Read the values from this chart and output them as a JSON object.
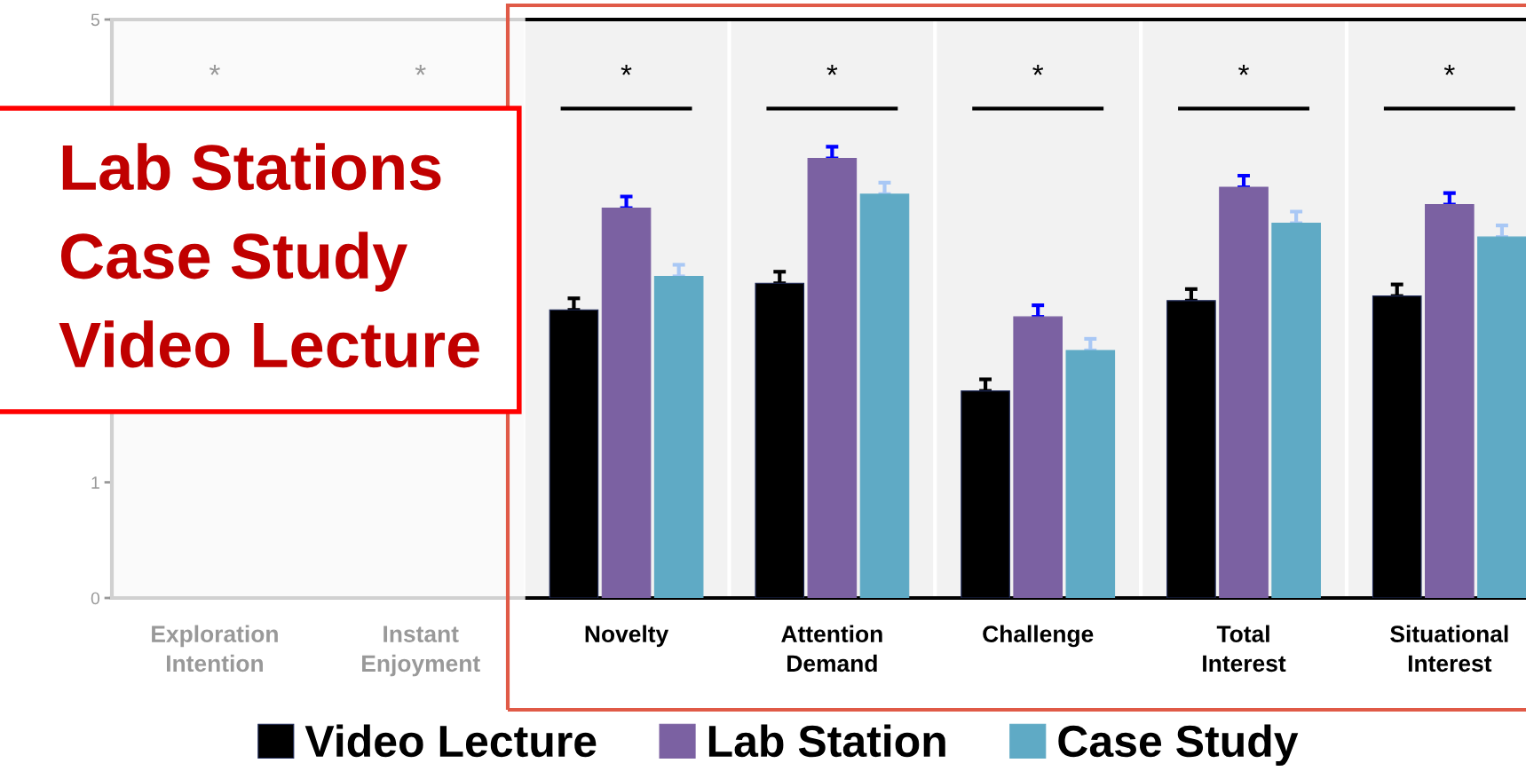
{
  "chart_data": {
    "type": "bar",
    "categories": [
      "Exploration Intention",
      "Instant Enjoyment",
      "Novelty",
      "Attention Demand",
      "Challenge",
      "Total Interest",
      "Situational Interest"
    ],
    "series": [
      {
        "name": "Video Lecture",
        "color": "#000000",
        "values": [
          null,
          null,
          2.49,
          2.72,
          1.79,
          2.57,
          2.61
        ],
        "errors": [
          null,
          null,
          0.1,
          0.1,
          0.1,
          0.1,
          0.1
        ]
      },
      {
        "name": "Lab Station",
        "color": "#7b61a2",
        "values": [
          null,
          null,
          3.37,
          3.8,
          2.43,
          3.55,
          3.4
        ],
        "errors": [
          null,
          null,
          0.1,
          0.1,
          0.1,
          0.1,
          0.1
        ]
      },
      {
        "name": "Case Study",
        "color": "#5faac5",
        "values": [
          null,
          null,
          2.78,
          3.49,
          2.14,
          3.24,
          3.12
        ],
        "errors": [
          null,
          null,
          0.1,
          0.1,
          0.1,
          0.1,
          0.1
        ]
      }
    ],
    "ylim": [
      0,
      5
    ],
    "yticks": [
      0,
      1,
      5
    ],
    "grid": false,
    "legend": "bottom",
    "annotations": [
      "*",
      "*",
      "*",
      "*",
      "*",
      "*",
      "*",
      "Lab Stations",
      "Case Study",
      "Video Lecture"
    ]
  }
}
